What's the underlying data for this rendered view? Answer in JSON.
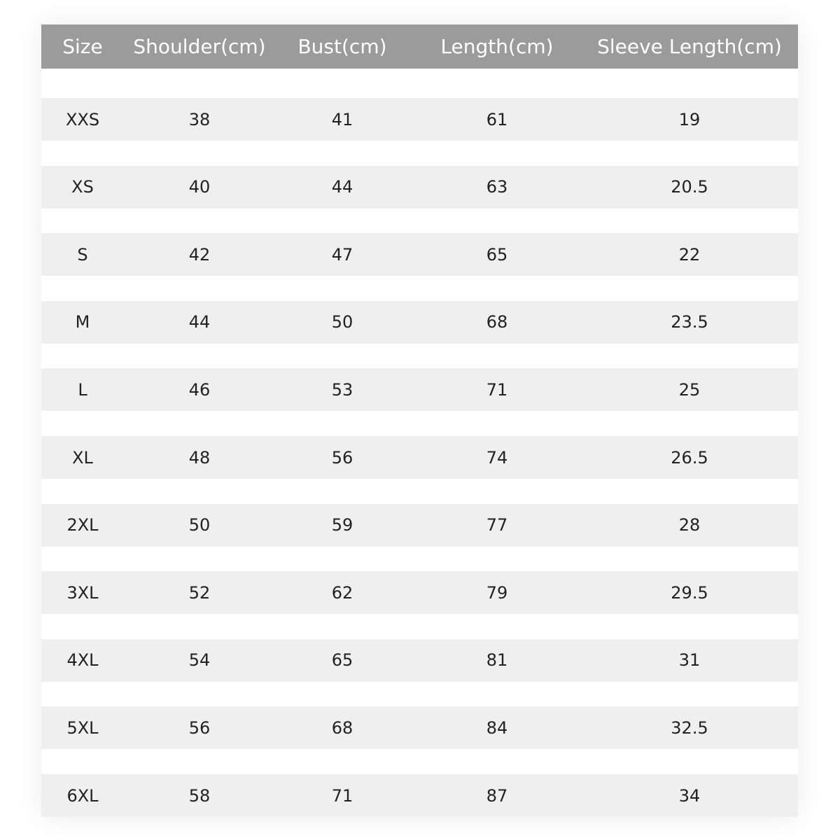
{
  "table": {
    "header": [
      "Size",
      "Shoulder(cm)",
      "Bust(cm)",
      "Length(cm)",
      "Sleeve Length(cm)"
    ],
    "rows": [
      [
        "XXS",
        38,
        41,
        61,
        19
      ],
      [
        "XS",
        40,
        44,
        63,
        20.5
      ],
      [
        "S",
        42,
        47,
        65,
        22
      ],
      [
        "M",
        44,
        50,
        68,
        23.5
      ],
      [
        "L",
        46,
        53,
        71,
        25
      ],
      [
        "XL",
        48,
        56,
        74,
        26.5
      ],
      [
        "2XL",
        50,
        59,
        77,
        28
      ],
      [
        "3XL",
        52,
        62,
        79,
        29.5
      ],
      [
        "4XL",
        54,
        65,
        81,
        31
      ],
      [
        "5XL",
        56,
        68,
        84,
        32.5
      ],
      [
        "6XL",
        58,
        71,
        87,
        34
      ]
    ]
  }
}
